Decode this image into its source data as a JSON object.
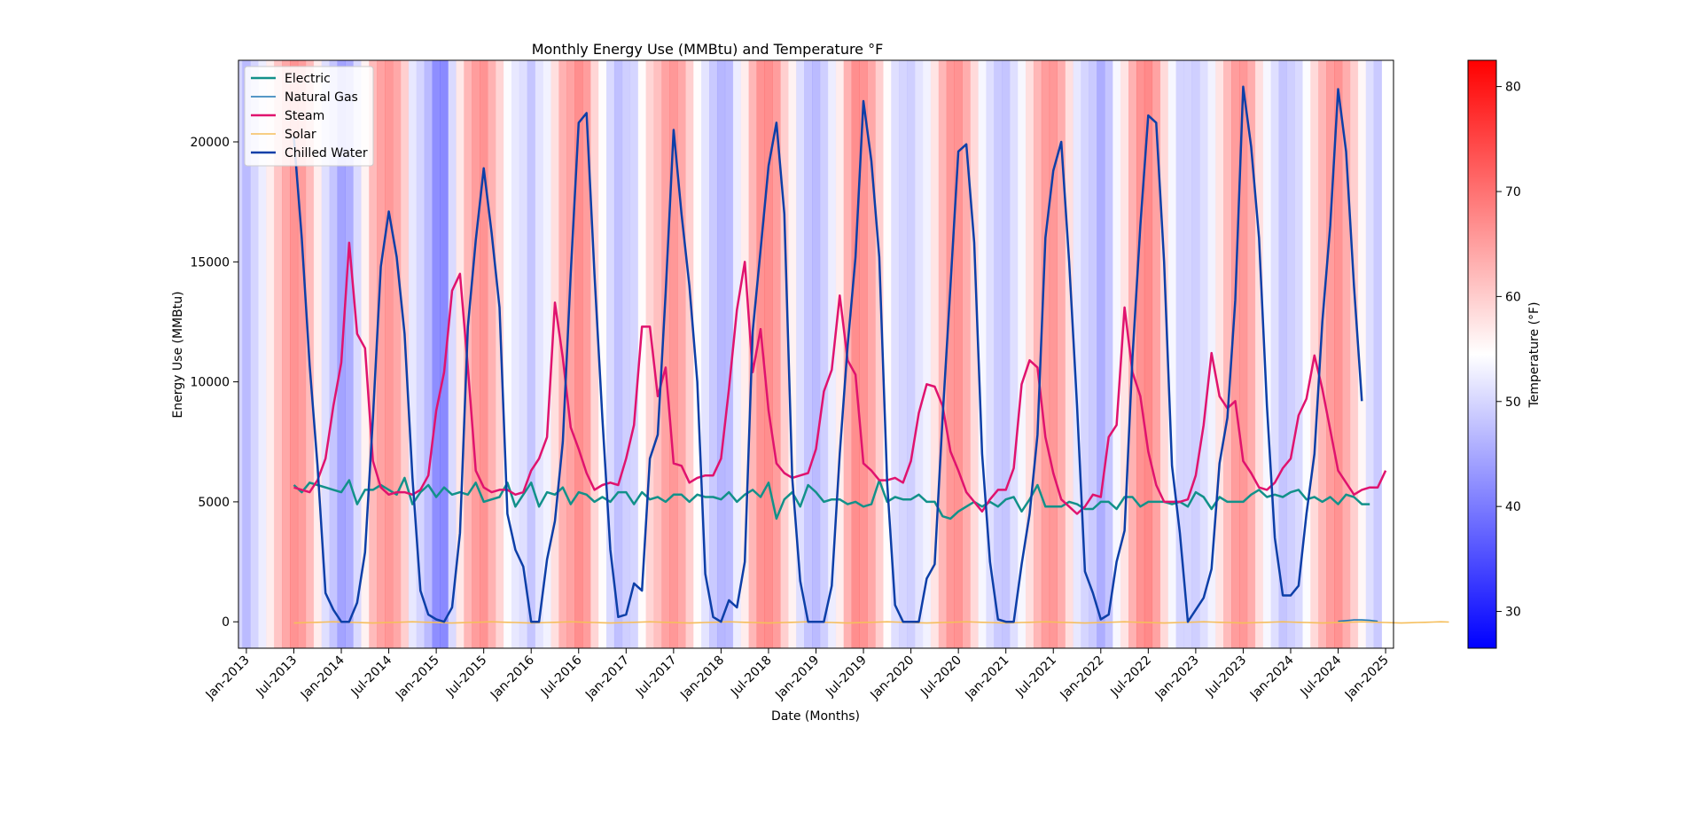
{
  "chart_data": {
    "type": "line",
    "title": "Monthly Energy Use (MMBtu) and Temperature °F",
    "xlabel": "Date (Months)",
    "ylabel": "Energy Use (MMBtu)",
    "ylim": [
      -1100,
      23400
    ],
    "yticks": [
      0,
      5000,
      10000,
      15000,
      20000
    ],
    "xlim_months": [
      -1,
      145
    ],
    "xticks": [
      {
        "m": 0,
        "label": "Jan-2013"
      },
      {
        "m": 6,
        "label": "Jul-2013"
      },
      {
        "m": 12,
        "label": "Jan-2014"
      },
      {
        "m": 18,
        "label": "Jul-2014"
      },
      {
        "m": 24,
        "label": "Jan-2015"
      },
      {
        "m": 30,
        "label": "Jul-2015"
      },
      {
        "m": 36,
        "label": "Jan-2016"
      },
      {
        "m": 42,
        "label": "Jul-2016"
      },
      {
        "m": 48,
        "label": "Jan-2017"
      },
      {
        "m": 54,
        "label": "Jul-2017"
      },
      {
        "m": 60,
        "label": "Jan-2018"
      },
      {
        "m": 66,
        "label": "Jul-2018"
      },
      {
        "m": 72,
        "label": "Jan-2019"
      },
      {
        "m": 78,
        "label": "Jul-2019"
      },
      {
        "m": 84,
        "label": "Jan-2020"
      },
      {
        "m": 90,
        "label": "Jul-2020"
      },
      {
        "m": 96,
        "label": "Jan-2021"
      },
      {
        "m": 102,
        "label": "Jul-2021"
      },
      {
        "m": 108,
        "label": "Jan-2022"
      },
      {
        "m": 114,
        "label": "Jul-2022"
      },
      {
        "m": 120,
        "label": "Jan-2023"
      },
      {
        "m": 126,
        "label": "Jul-2023"
      },
      {
        "m": 132,
        "label": "Jan-2024"
      },
      {
        "m": 138,
        "label": "Jul-2024"
      },
      {
        "m": 144,
        "label": "Jan-2025"
      }
    ],
    "legend_position": "top-left",
    "grid": false,
    "series": [
      {
        "name": "Electric",
        "color": "#12918a",
        "start": 6,
        "values": [
          5700,
          5400,
          5800,
          5700,
          5600,
          5500,
          5400,
          5900,
          4900,
          5500,
          5500,
          5700,
          5500,
          5300,
          6000,
          4900,
          5400,
          5700,
          5200,
          5600,
          5300,
          5400,
          5300,
          5800,
          5000,
          5100,
          5200,
          5800,
          4800,
          5300,
          5800,
          4800,
          5400,
          5300,
          5600,
          4900,
          5400,
          5300,
          5000,
          5200,
          5000,
          5400,
          5400,
          4900,
          5400,
          5100,
          5200,
          5000,
          5300,
          5300,
          5000,
          5300,
          5200,
          5200,
          5100,
          5400,
          5000,
          5300,
          5500,
          5200,
          5800,
          4300,
          5100,
          5400,
          4800,
          5700,
          5400,
          5000,
          5100,
          5100,
          4900,
          5000,
          4800,
          4900,
          5900,
          5000,
          5200,
          5100,
          5100,
          5300,
          5000,
          5000,
          4400,
          4300,
          4600,
          4800,
          5000,
          4800,
          5000,
          4800,
          5100,
          5200,
          4600,
          5100,
          5700,
          4800,
          4800,
          4800,
          5000,
          4900,
          4700,
          4700,
          5000,
          5000,
          4700,
          5200,
          5200,
          4800,
          5000,
          5000,
          5000,
          4900,
          5000,
          4800,
          5400,
          5200,
          4700,
          5200,
          5000,
          5000,
          5000,
          5300,
          5500,
          5200,
          5300,
          5200,
          5400,
          5500,
          5100,
          5200,
          5000,
          5200,
          4900,
          5300,
          5200,
          4900,
          4900
        ]
      },
      {
        "name": "Natural Gas",
        "color": "#1f77b4",
        "start": 138,
        "values": [
          20,
          50,
          80,
          80,
          60,
          20
        ]
      },
      {
        "name": "Steam",
        "color": "#e0136e",
        "start": 6,
        "values": [
          5600,
          5500,
          5400,
          5900,
          6800,
          9000,
          10800,
          15800,
          12000,
          11400,
          6700,
          5600,
          5300,
          5400,
          5400,
          5300,
          5500,
          6100,
          8800,
          10400,
          13800,
          14500,
          10600,
          6300,
          5600,
          5400,
          5500,
          5500,
          5300,
          5400,
          6300,
          6800,
          7700,
          13300,
          11000,
          8100,
          7200,
          6200,
          5500,
          5700,
          5800,
          5700,
          6800,
          8200,
          12300,
          12300,
          9400,
          10600,
          6600,
          6500,
          5800,
          6000,
          6100,
          6100,
          6800,
          9700,
          13000,
          15000,
          10400,
          12200,
          8800,
          6600,
          6200,
          6000,
          6100,
          6200,
          7200,
          9600,
          10500,
          13600,
          10900,
          10300,
          6600,
          6300,
          5900,
          5900,
          6000,
          5800,
          6700,
          8700,
          9900,
          9800,
          9000,
          7100,
          6300,
          5400,
          5000,
          4600,
          5100,
          5500,
          5500,
          6400,
          9900,
          10900,
          10600,
          7700,
          6200,
          5100,
          4800,
          4500,
          4800,
          5300,
          5200,
          7700,
          8200,
          13100,
          10400,
          9400,
          7100,
          5700,
          5000,
          5000,
          5000,
          5100,
          6100,
          8200,
          11200,
          9400,
          8900,
          9200,
          6700,
          6200,
          5600,
          5500,
          5800,
          6400,
          6800,
          8600,
          9300,
          11100,
          9700,
          8000,
          6300,
          5800,
          5300,
          5500,
          5600,
          5600,
          6300
        ]
      },
      {
        "name": "Solar",
        "color": "#f5be5b",
        "start": 6,
        "values": [
          -50,
          -40,
          -30,
          -20,
          -10,
          0,
          -10,
          -20,
          -30,
          -40,
          -50,
          -40,
          -30,
          -20,
          -10,
          0,
          -10,
          -20,
          -30,
          -40,
          -50,
          -40,
          -30,
          -20,
          -10,
          0,
          -10,
          -20,
          -30,
          -40,
          -50,
          -40,
          -30,
          -20,
          -10,
          0,
          -10,
          -20,
          -30,
          -40,
          -50,
          -40,
          -30,
          -20,
          -10,
          0,
          -10,
          -20,
          -30,
          -40,
          -50,
          -40,
          -30,
          -20,
          -10,
          0,
          -10,
          -20,
          -30,
          -40,
          -50,
          -40,
          -30,
          -20,
          -10,
          0,
          -10,
          -20,
          -30,
          -40,
          -50,
          -40,
          -30,
          -20,
          -10,
          0,
          -10,
          -20,
          -30,
          -40,
          -50,
          -40,
          -30,
          -20,
          -10,
          0,
          -10,
          -20,
          -30,
          -40,
          -50,
          -40,
          -30,
          -20,
          -10,
          0,
          -10,
          -20,
          -30,
          -40,
          -50,
          -40,
          -30,
          -20,
          -10,
          0,
          -10,
          -20,
          -30,
          -40,
          -50,
          -40,
          -30,
          -20,
          -10,
          0,
          -10,
          -20,
          -30,
          -40,
          -50,
          -40,
          -30,
          -20,
          -10,
          0,
          -10,
          -20,
          -30,
          -40,
          -50,
          -40,
          -30,
          -20,
          -10,
          0,
          -10,
          -20,
          -30,
          -40,
          -50,
          -40,
          -30,
          -20,
          -10,
          0,
          -10
        ]
      },
      {
        "name": "Chilled Water",
        "color": "#0d3fa8",
        "start": 6,
        "values": [
          20200,
          16000,
          10700,
          6500,
          1200,
          500,
          0,
          0,
          800,
          2900,
          8500,
          14800,
          17100,
          15200,
          12000,
          6000,
          1300,
          300,
          100,
          0,
          600,
          3700,
          12300,
          15900,
          18900,
          16200,
          13100,
          4500,
          3000,
          2300,
          0,
          0,
          2600,
          4200,
          7500,
          14500,
          20800,
          21200,
          14500,
          8500,
          3000,
          200,
          300,
          1600,
          1300,
          6800,
          7800,
          13700,
          20500,
          17000,
          14000,
          10000,
          2000,
          200,
          0,
          900,
          600,
          2500,
          12100,
          15500,
          19000,
          20800,
          17000,
          6000,
          1700,
          0,
          0,
          0,
          1500,
          7000,
          11500,
          15200,
          21700,
          19200,
          15200,
          5800,
          700,
          0,
          0,
          0,
          1800,
          2400,
          8500,
          14000,
          19600,
          19900,
          15800,
          7000,
          2500,
          100,
          0,
          0,
          2400,
          4500,
          7800,
          16000,
          18800,
          20000,
          15000,
          9000,
          2100,
          1200,
          100,
          300,
          2500,
          3800,
          11000,
          16500,
          21100,
          20800,
          15000,
          6500,
          3700,
          0,
          500,
          1000,
          2200,
          6600,
          8500,
          13400,
          22300,
          19800,
          16000,
          9000,
          3500,
          1100,
          1100,
          1500,
          4500,
          7000,
          12500,
          16500,
          22200,
          19600,
          14000,
          9200
        ]
      }
    ],
    "temperature_band": {
      "label": "Temperature (°F)",
      "vmin": 26.5,
      "vmax": 82.5,
      "colorbar_ticks": [
        30,
        40,
        50,
        60,
        70,
        80
      ],
      "start_month": -1,
      "values": [
        46,
        41,
        46,
        51,
        58,
        66,
        72,
        76,
        74,
        68,
        58,
        48,
        43,
        36,
        38,
        47,
        57,
        68,
        73,
        75,
        72,
        64,
        50,
        46,
        41,
        32,
        31,
        47,
        59,
        69,
        74,
        76,
        70,
        63,
        54,
        50,
        48,
        43,
        49,
        52,
        61,
        70,
        73,
        77,
        74,
        63,
        55,
        47,
        42,
        45,
        46,
        55,
        63,
        67,
        73,
        75,
        72,
        64,
        55,
        49,
        44,
        40,
        41,
        51,
        58,
        69,
        76,
        77,
        74,
        64,
        57,
        48,
        43,
        41,
        45,
        51,
        58,
        70,
        77,
        76,
        72,
        64,
        55,
        48,
        46,
        45,
        49,
        52,
        60,
        69,
        75,
        76,
        71,
        62,
        53,
        48,
        44,
        43,
        48,
        53,
        61,
        69,
        74,
        75,
        71,
        61,
        50,
        46,
        44,
        38,
        43,
        53,
        60,
        70,
        76,
        78,
        73,
        62,
        53,
        46,
        46,
        45,
        48,
        52,
        60,
        68,
        74,
        75,
        71,
        61,
        53,
        48,
        43,
        45,
        47,
        54,
        62,
        69,
        74,
        76,
        71,
        64,
        56,
        48,
        44
      ]
    },
    "colors": {
      "frame": "#000000",
      "background": "#ffffff"
    }
  }
}
